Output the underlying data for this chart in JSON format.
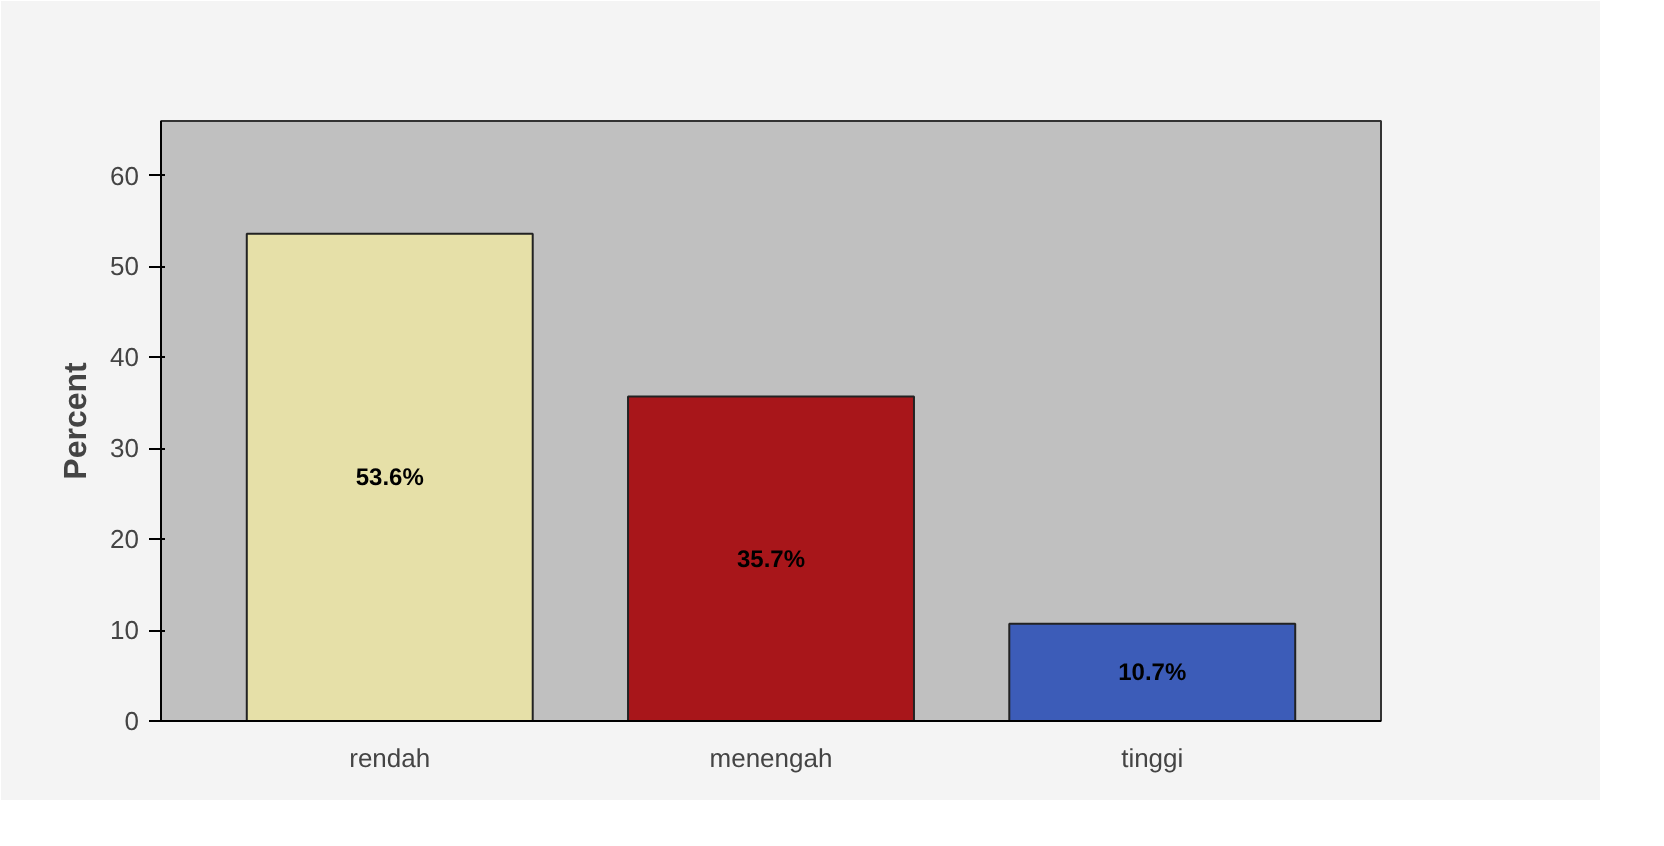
{
  "chart_data": {
    "type": "bar",
    "ylabel": "Percent",
    "categories": [
      "rendah",
      "menengah",
      "tinggi"
    ],
    "values": [
      53.6,
      35.7,
      10.7
    ],
    "colors": [
      "#e6e0a8",
      "#a8161a",
      "#3c5cb8"
    ],
    "value_labels": [
      "53.6%",
      "35.7%",
      "10.7%"
    ],
    "ylim": [
      0,
      66
    ],
    "yticks": [
      0,
      10,
      20,
      30,
      40,
      50,
      60
    ],
    "grid": false
  }
}
